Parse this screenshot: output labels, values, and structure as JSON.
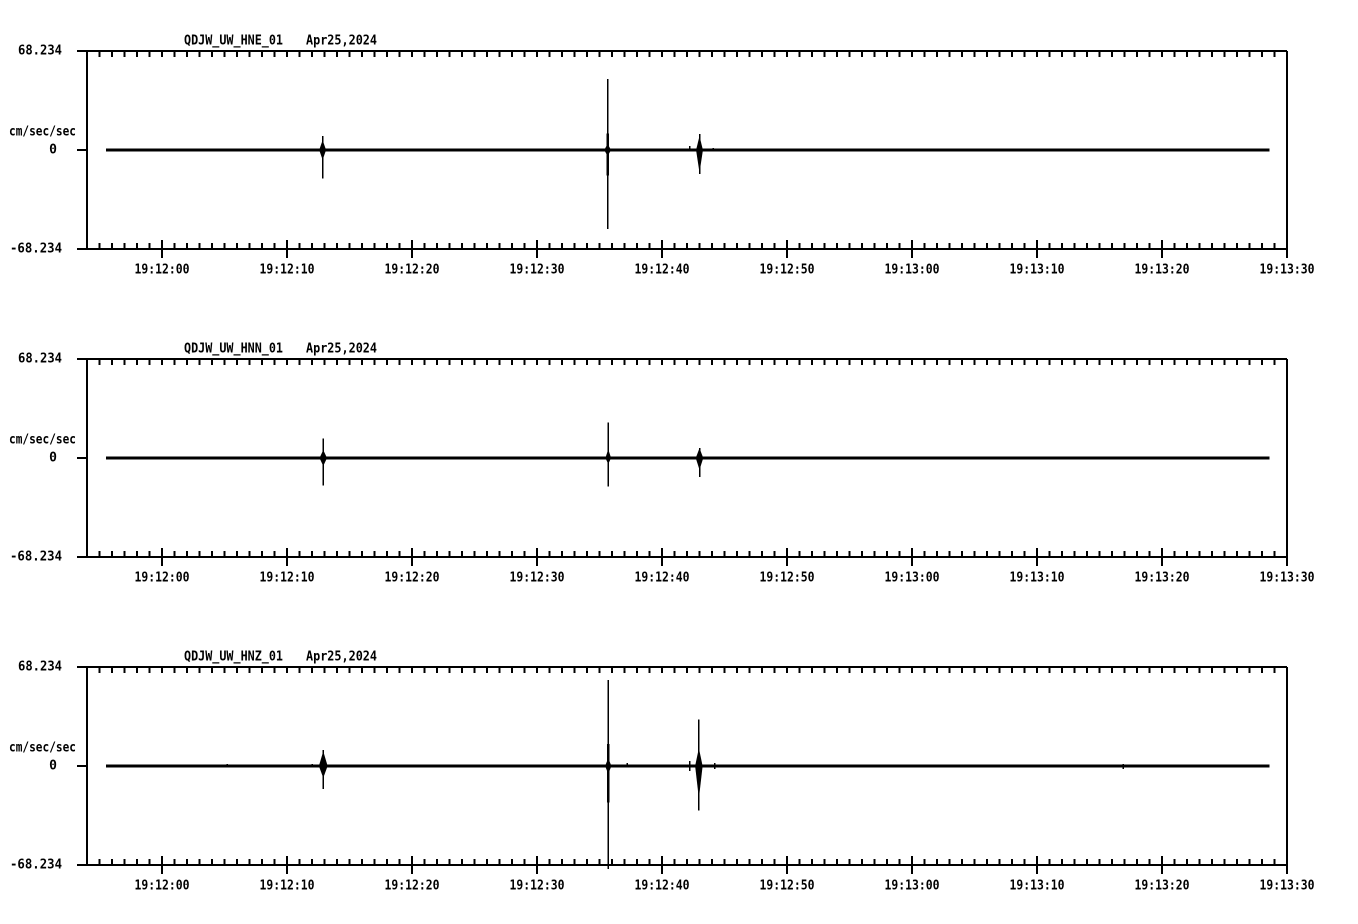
{
  "app": {
    "background_color": "#ffffff",
    "trace_color": "#000000"
  },
  "chart_data": {
    "type": "line",
    "kind": "seismogram-three-component",
    "date": "Apr25,2024",
    "y_unit_label": "cm/sec/sec",
    "y_axis_labels": {
      "top": "68.234",
      "zero": "0",
      "bottom": "-68.234"
    },
    "ylim": [
      -68.234,
      68.234
    ],
    "x_axis": {
      "start": "19:11:54",
      "end": "19:13:30",
      "tick_labels": [
        "19:12:00",
        "19:12:10",
        "19:12:20",
        "19:12:30",
        "19:12:40",
        "19:12:50",
        "19:13:00",
        "19:13:10",
        "19:13:20",
        "19:13:30"
      ],
      "label_interval_s": 10,
      "minor_tick_interval_s": 1,
      "seconds_range": [
        -6,
        90
      ]
    },
    "trace_span_s": [
      -4.5,
      88.6
    ],
    "panels": [
      {
        "channel": "HNE",
        "title": "QDJW_UW_HNE_01",
        "date_label": "Apr25,2024",
        "baseline": 0,
        "events": [
          {
            "t": 12.85,
            "up": 9.6,
            "down": -19.8,
            "burst_up": 6.8,
            "burst_down": -6.8,
            "burst_w": 0.55
          },
          {
            "t": 35.65,
            "up": 49.1,
            "down": -54.6,
            "mid_up": 11.3,
            "mid_down": -17.5,
            "burst_up": 4.1,
            "burst_down": -4.1,
            "burst_w": 0.55
          },
          {
            "t": 42.2,
            "up": 2.7,
            "down": -0.7
          },
          {
            "t": 43.0,
            "up": 10.9,
            "down": -16.4,
            "burst_up": 9.6,
            "burst_down": -15.7,
            "burst_w": 0.55
          },
          {
            "t": 44.1,
            "up": 1.4,
            "down": -0.7
          },
          {
            "t": 45.0,
            "up": 0.7,
            "down": -0.7
          },
          {
            "t": 76.9,
            "up": 1.0,
            "down": -0.7
          }
        ]
      },
      {
        "channel": "HNN",
        "title": "QDJW_UW_HNN_01",
        "date_label": "Apr25,2024",
        "baseline": 0,
        "events": [
          {
            "t": 12.9,
            "up": 13.6,
            "down": -19.1,
            "burst_up": 5.5,
            "burst_down": -5.5,
            "burst_w": 0.6
          },
          {
            "t": 35.7,
            "up": 24.6,
            "down": -19.8,
            "burst_up": 6.1,
            "burst_down": -4.1,
            "burst_w": 0.45
          },
          {
            "t": 43.0,
            "up": 6.8,
            "down": -13.0,
            "burst_up": 6.8,
            "burst_down": -8.2,
            "burst_w": 0.6
          }
        ]
      },
      {
        "channel": "HNZ",
        "title": "QDJW_UW_HNZ_01",
        "date_label": "Apr25,2024",
        "baseline": 0,
        "events": [
          {
            "t": 5.2,
            "up": 1.4,
            "down": -0.7
          },
          {
            "t": 12.0,
            "up": 1.4,
            "down": -0.7
          },
          {
            "t": 12.9,
            "up": 10.9,
            "down": -15.7,
            "burst_up": 10.2,
            "burst_down": -8.2,
            "burst_w": 0.7
          },
          {
            "t": 15.5,
            "up": 1.0,
            "down": -1.0
          },
          {
            "t": 18.1,
            "up": 1.0,
            "down": -0.7
          },
          {
            "t": 35.7,
            "up": 59.4,
            "down": -71.0,
            "mid_up": 15.0,
            "mid_down": -25.2,
            "burst_up": 5.5,
            "burst_down": -5.5,
            "burst_w": 0.5
          },
          {
            "t": 37.2,
            "up": 2.0,
            "down": -0.7
          },
          {
            "t": 42.2,
            "up": 3.4,
            "down": -3.4
          },
          {
            "t": 42.95,
            "up": 32.1,
            "down": -30.7,
            "burst_up": 12.3,
            "burst_down": -22.5,
            "burst_w": 0.6
          },
          {
            "t": 44.2,
            "up": 2.0,
            "down": -2.0
          },
          {
            "t": 76.9,
            "up": 1.4,
            "down": -2.0
          }
        ]
      }
    ]
  }
}
